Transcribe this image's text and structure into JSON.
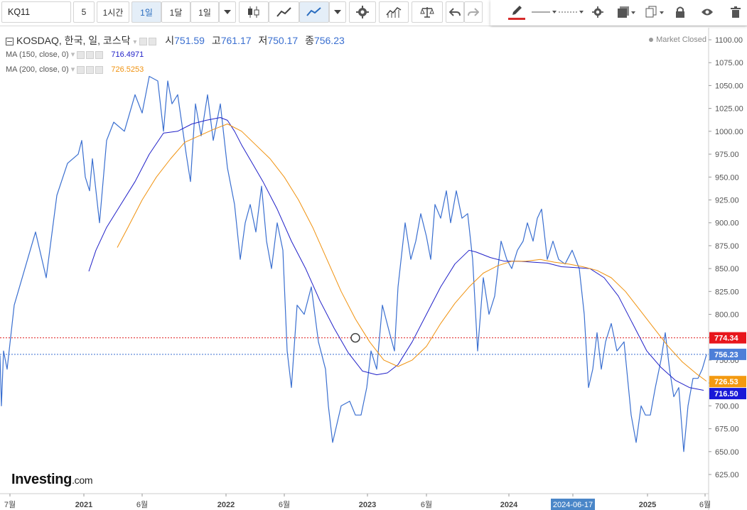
{
  "toolbar": {
    "symbol": "KQ11",
    "interval_value": "5",
    "intervals": [
      "1시간",
      "1일",
      "1달",
      "1일"
    ],
    "selected_interval": "1일"
  },
  "drawbar": {
    "pen_color": "#d62b2b"
  },
  "legend": {
    "title": "KOSDAQ, 한국, 일, 코스닥",
    "open_label": "시",
    "open": "751.59",
    "high_label": "고",
    "high": "761.17",
    "low_label": "저",
    "low": "750.17",
    "close_label": "종",
    "close": "756.23"
  },
  "indicators": [
    {
      "label": "MA (150, close, 0)",
      "value": "716.4971",
      "color": "#2020c8"
    },
    {
      "label": "MA (200, close, 0)",
      "value": "726.5253",
      "color": "#f0920f"
    }
  ],
  "status": "Market Closed",
  "logo": {
    "name": "Investing",
    "suffix": ".com"
  },
  "chart_data": {
    "type": "line",
    "ylim": [
      610,
      1105
    ],
    "y_ticks": [
      625,
      650,
      675,
      700,
      725,
      750,
      775,
      800,
      825,
      850,
      875,
      900,
      925,
      950,
      975,
      1000,
      1025,
      1050,
      1075,
      1100
    ],
    "x_tick_labels": [
      "7월",
      "2021",
      "6월",
      "2022",
      "6월",
      "2023",
      "6월",
      "2024",
      "2024-06-17",
      "2025",
      "6월"
    ],
    "highlighted_x_label": "2024-06-17",
    "horizontal_lines": [
      {
        "value": 774.34,
        "label": "774.34",
        "color": "#e02020"
      },
      {
        "value": 756.23,
        "label": "756.23",
        "color": "#3a6fd0"
      }
    ],
    "price_tags": [
      {
        "value": 774.34,
        "label": "774.34",
        "color": "#e8161c"
      },
      {
        "value": 756.23,
        "label": "756.23",
        "color": "#4d7fd8"
      },
      {
        "value": 726.53,
        "label": "726.53",
        "color": "#f39a10"
      },
      {
        "value": 716.5,
        "label": "716.50",
        "color": "#1818d8"
      }
    ],
    "marker": {
      "x": 500,
      "value": 774.34
    },
    "series": [
      {
        "name": "KOSDAQ",
        "color": "#3a6fd0",
        "x": [
          0,
          2,
          5,
          10,
          20,
          35,
          50,
          65,
          80,
          95,
          110,
          115,
          120,
          126,
          130,
          140,
          150,
          160,
          175,
          190,
          200,
          210,
          222,
          230,
          236,
          242,
          250,
          262,
          268,
          275,
          283,
          292,
          300,
          310,
          320,
          330,
          338,
          345,
          352,
          360,
          368,
          375,
          382,
          390,
          398,
          404,
          410,
          418,
          428,
          438,
          448,
          458,
          462,
          468,
          480,
          492,
          500,
          508,
          516,
          522,
          530,
          538,
          548,
          555,
          560,
          570,
          578,
          585,
          592,
          600,
          606,
          612,
          620,
          628,
          634,
          642,
          650,
          658,
          665,
          672,
          680,
          688,
          696,
          705,
          713,
          720,
          728,
          736,
          742,
          750,
          756,
          762,
          770,
          778,
          786,
          795,
          805,
          815,
          822,
          828,
          834,
          840,
          846,
          852,
          860,
          868,
          878,
          888,
          895,
          902,
          908,
          915,
          922,
          930,
          936,
          942,
          948,
          955,
          962,
          968,
          975,
          982,
          988,
          994
        ],
        "values": [
          755,
          700,
          760,
          740,
          810,
          850,
          890,
          840,
          930,
          965,
          975,
          990,
          950,
          935,
          970,
          900,
          990,
          1010,
          1000,
          1040,
          1020,
          1060,
          1055,
          1000,
          1055,
          1030,
          1040,
          975,
          945,
          1030,
          995,
          1040,
          990,
          1030,
          960,
          920,
          860,
          900,
          920,
          890,
          940,
          880,
          850,
          900,
          870,
          760,
          720,
          810,
          800,
          830,
          770,
          740,
          700,
          660,
          700,
          705,
          690,
          690,
          720,
          760,
          740,
          810,
          780,
          760,
          830,
          900,
          860,
          880,
          910,
          885,
          860,
          920,
          905,
          935,
          900,
          935,
          905,
          910,
          860,
          760,
          840,
          800,
          820,
          880,
          860,
          850,
          870,
          880,
          900,
          880,
          905,
          915,
          860,
          880,
          860,
          855,
          870,
          850,
          800,
          720,
          740,
          780,
          740,
          770,
          790,
          760,
          770,
          690,
          660,
          700,
          690,
          690,
          720,
          750,
          780,
          740,
          710,
          720,
          650,
          700,
          730,
          730,
          740,
          756
        ]
      },
      {
        "name": "MA (150, close, 0)",
        "color": "#2020c8",
        "x": [
          125,
          135,
          150,
          170,
          190,
          210,
          230,
          250,
          270,
          290,
          310,
          320,
          330,
          340,
          355,
          370,
          390,
          410,
          430,
          450,
          470,
          490,
          510,
          530,
          545,
          560,
          580,
          600,
          620,
          640,
          660,
          670,
          690,
          710,
          730,
          750,
          770,
          790,
          810,
          830,
          850,
          870,
          890,
          910,
          930,
          950,
          970,
          990
        ],
        "values": [
          847,
          870,
          895,
          920,
          945,
          975,
          998,
          1000,
          1008,
          1012,
          1015,
          1012,
          1000,
          985,
          965,
          945,
          915,
          880,
          850,
          815,
          785,
          758,
          738,
          734,
          736,
          745,
          770,
          800,
          830,
          855,
          870,
          868,
          862,
          858,
          858,
          857,
          856,
          852,
          851,
          850,
          840,
          820,
          790,
          760,
          742,
          728,
          720,
          717
        ]
      },
      {
        "name": "MA (200, close, 0)",
        "color": "#f0920f",
        "x": [
          165,
          180,
          200,
          220,
          240,
          260,
          280,
          300,
          320,
          340,
          360,
          380,
          400,
          420,
          440,
          460,
          480,
          500,
          520,
          540,
          560,
          580,
          600,
          620,
          640,
          660,
          680,
          700,
          720,
          740,
          760,
          780,
          800,
          820,
          840,
          860,
          880,
          900,
          920,
          940,
          960,
          980,
          994
        ],
        "values": [
          873,
          895,
          925,
          950,
          970,
          988,
          995,
          1002,
          1008,
          1000,
          985,
          970,
          950,
          925,
          895,
          860,
          825,
          795,
          770,
          750,
          743,
          750,
          765,
          790,
          812,
          830,
          845,
          853,
          858,
          858,
          860,
          857,
          855,
          852,
          848,
          840,
          825,
          805,
          785,
          765,
          748,
          735,
          727
        ]
      }
    ]
  }
}
